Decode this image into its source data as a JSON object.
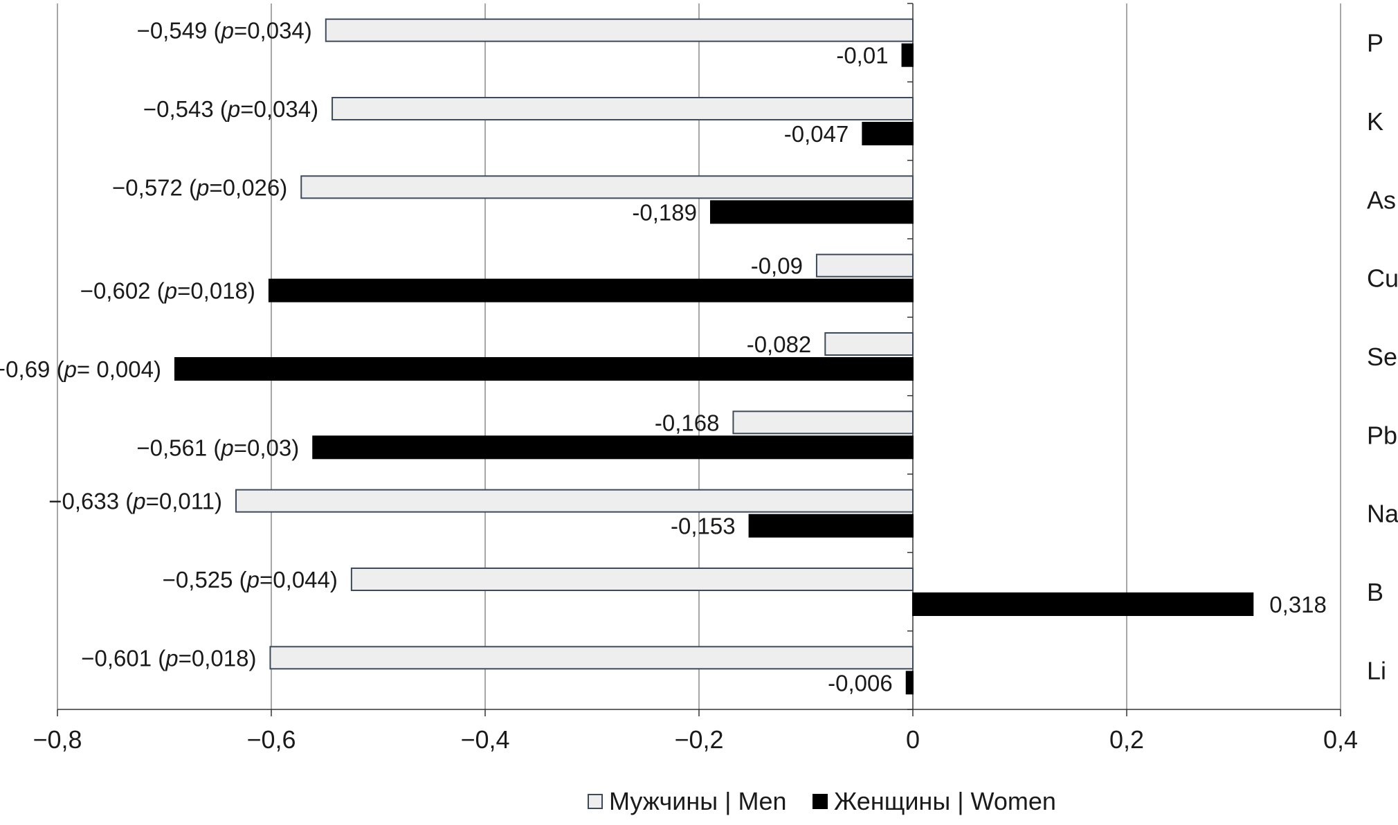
{
  "chart_data": {
    "type": "bar",
    "orientation": "horizontal",
    "categories": [
      "P",
      "K",
      "As",
      "Cu",
      "Se",
      "Pb",
      "Na",
      "B",
      "Li"
    ],
    "series": [
      {
        "name": "Мужчины | Men",
        "color": "#eeeeee",
        "stroke": "#3d4a5c",
        "values": [
          -0.549,
          -0.543,
          -0.572,
          -0.09,
          -0.082,
          -0.168,
          -0.633,
          -0.525,
          -0.601
        ],
        "labels": [
          "−0,549 (p=0,034)",
          "−0,543 (p=0,034)",
          "−0,572 (p=0,026)",
          "-0,09",
          "-0,082",
          "-0,168",
          "−0,633 (p=0,011)",
          "−0,525 (p=0,044)",
          "−0,601 (p=0,018)"
        ]
      },
      {
        "name": "Женщины | Women",
        "color": "#000000",
        "stroke": "#000000",
        "values": [
          -0.01,
          -0.047,
          -0.189,
          -0.602,
          -0.69,
          -0.561,
          -0.153,
          0.318,
          -0.006
        ],
        "labels": [
          "-0,01",
          "-0,047",
          "-0,189",
          "−0,602 (p=0,018)",
          "−0,69 (p= 0,004)",
          "−0,561 (p=0,03)",
          "-0,153",
          "0,318",
          "-0,006"
        ]
      }
    ],
    "xlim": [
      -0.8,
      0.4
    ],
    "xticks": [
      -0.8,
      -0.6,
      -0.4,
      -0.2,
      0,
      0.2,
      0.4
    ],
    "xtick_labels": [
      "−0,8",
      "−0,6",
      "−0,4",
      "−0,2",
      "0",
      "0,2",
      "0,4"
    ],
    "grid": true,
    "legend_position": "bottom-center",
    "title": "",
    "xlabel": "",
    "ylabel": ""
  }
}
